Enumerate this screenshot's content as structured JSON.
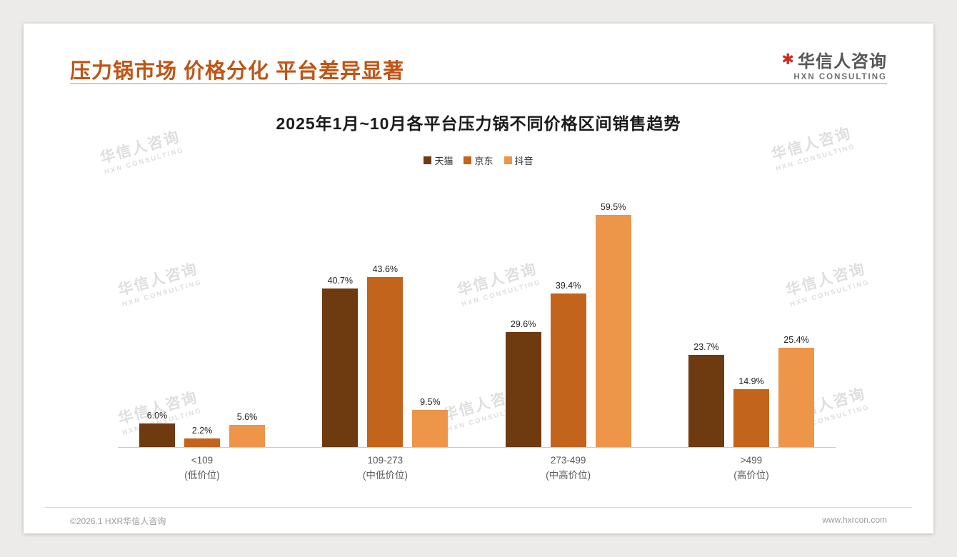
{
  "header": {
    "title": "压力锅市场 价格分化 平台差异显著",
    "logo": {
      "mark": "✱",
      "name": "华信人咨询",
      "subtitle": "HXN CONSULTING"
    }
  },
  "watermark": {
    "line1": "华信人咨询",
    "line2": "HXN CONSULTING"
  },
  "footer": {
    "copyright": "©2026.1 HXR华信人咨询",
    "website": "www.hxrcon.com"
  },
  "chart_data": {
    "type": "bar",
    "title": "2025年1月~10月各平台压力锅不同价格区间销售趋势",
    "categories": [
      {
        "label": "<109",
        "sub": "(低价位)"
      },
      {
        "label": "109-273",
        "sub": "(中低价位)"
      },
      {
        "label": "273-499",
        "sub": "(中高价位)"
      },
      {
        "label": ">499",
        "sub": "(高价位)"
      }
    ],
    "series": [
      {
        "name": "天猫",
        "color": "#6e3a10",
        "values": [
          6.0,
          40.7,
          29.6,
          23.7
        ]
      },
      {
        "name": "京东",
        "color": "#c2641c",
        "values": [
          2.2,
          43.6,
          39.4,
          14.9
        ]
      },
      {
        "name": "抖音",
        "color": "#ed9549",
        "values": [
          5.6,
          9.5,
          59.5,
          25.4
        ]
      }
    ],
    "value_suffix": "%",
    "xlabel": "",
    "ylabel": "",
    "ylim": [
      0,
      66
    ],
    "grid": false,
    "legend_position": "top"
  }
}
